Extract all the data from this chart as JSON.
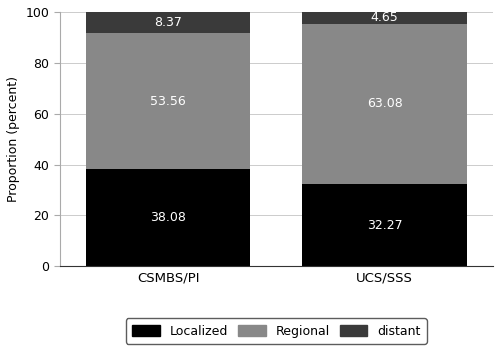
{
  "categories": [
    "CSMBS/PI",
    "UCS/SSS"
  ],
  "localized": [
    38.08,
    32.27
  ],
  "regional": [
    53.56,
    63.08
  ],
  "distant": [
    8.37,
    4.65
  ],
  "colors": {
    "localized": "#000000",
    "regional": "#888888",
    "distant": "#3a3a3a"
  },
  "ylabel": "Proportion (percent)",
  "ylim": [
    0,
    100
  ],
  "yticks": [
    0,
    20,
    40,
    60,
    80,
    100
  ],
  "legend_labels": [
    "Localized",
    "Regional",
    "distant"
  ],
  "bar_width": 0.38,
  "text_color": "white",
  "text_fontsize": 9,
  "background_color": "#ffffff",
  "grid_color": "#cccccc",
  "x_positions": [
    0.25,
    0.75
  ]
}
